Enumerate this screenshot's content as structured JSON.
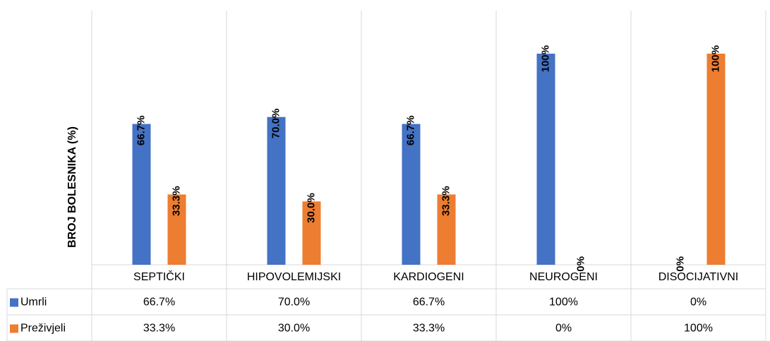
{
  "chart_data": {
    "type": "bar",
    "y_label": "BROJ BOLESNIKA (%)",
    "categories": [
      "SEPTIČKI",
      "HIPOVOLEMIJSKI",
      "KARDIOGENI",
      "NEUROGENI",
      "DISOCIJATIVNI"
    ],
    "series": [
      {
        "name": "Umrli",
        "color": "#4472c4",
        "values": [
          66.7,
          70.0,
          66.7,
          100,
          0
        ],
        "value_labels": [
          "66.7%",
          "70.0%",
          "66.7%",
          "100%",
          "0%"
        ]
      },
      {
        "name": "Preživjeli",
        "color": "#ed7d31",
        "values": [
          33.3,
          30.0,
          33.3,
          0,
          100
        ],
        "value_labels": [
          "33.3%",
          "30.0%",
          "33.3%",
          "0%",
          "100%"
        ]
      }
    ],
    "ylim": [
      0,
      100
    ],
    "data_table": true
  }
}
